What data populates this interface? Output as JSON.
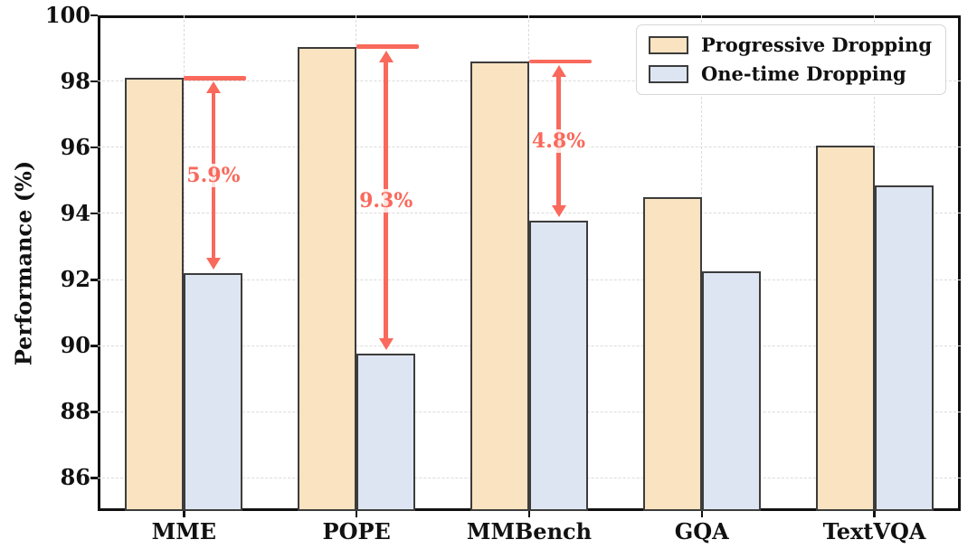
{
  "chart_data": {
    "type": "bar",
    "categories": [
      "MME",
      "POPE",
      "MMBench",
      "GQA",
      "TextVQA"
    ],
    "series": [
      {
        "name": "Progressive Dropping",
        "color": "#FAE3C0",
        "values": [
          98.1,
          99.05,
          98.6,
          94.5,
          96.05
        ]
      },
      {
        "name": "One-time Dropping",
        "color": "#DEE5F2",
        "values": [
          92.2,
          89.75,
          93.8,
          92.25,
          94.85
        ]
      }
    ],
    "annotations": [
      {
        "category": "MME",
        "label": "5.9%"
      },
      {
        "category": "POPE",
        "label": "9.3%"
      },
      {
        "category": "MMBench",
        "label": "4.8%"
      }
    ],
    "title": "",
    "xlabel": "",
    "ylabel": "Performance (%)",
    "ylim": [
      85,
      100
    ],
    "yticks": [
      86,
      88,
      90,
      92,
      94,
      96,
      98,
      100
    ],
    "grid": true,
    "legend_position": "top-right",
    "colors": {
      "annotation": "#F9695C",
      "bar_edge": "#3C3C3C",
      "grid": "#DBDBDB",
      "axis": "#111111"
    }
  }
}
